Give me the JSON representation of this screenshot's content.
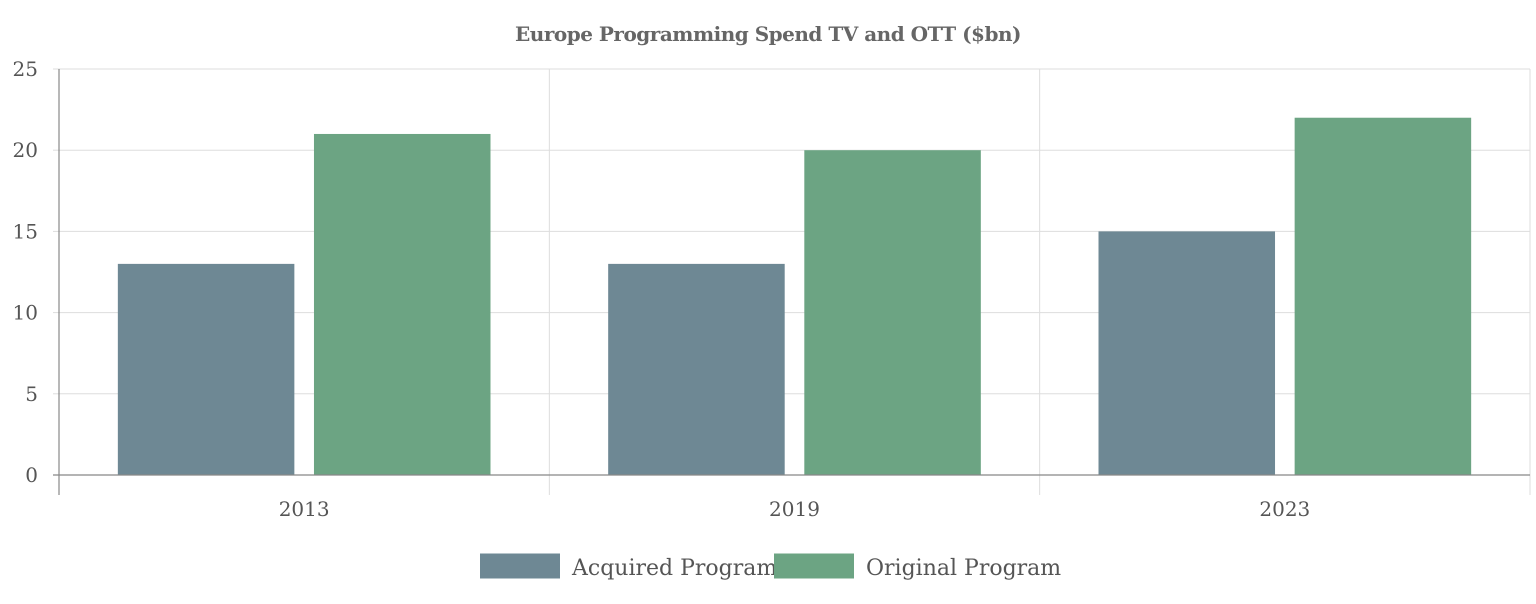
{
  "chart_data": {
    "type": "bar",
    "title": "Europe Programming Spend TV and OTT ($bn)",
    "categories": [
      "2013",
      "2019",
      "2023"
    ],
    "series": [
      {
        "name": "Acquired Program",
        "values": [
          13,
          13,
          15
        ],
        "color": "#6e8894"
      },
      {
        "name": "Original Program",
        "values": [
          21,
          20,
          22
        ],
        "color": "#6ca483"
      }
    ],
    "ylim": [
      0,
      25
    ],
    "yticks": [
      "0",
      "5",
      "10",
      "15",
      "20",
      "25"
    ],
    "xlabel": "",
    "ylabel": "",
    "grid": true,
    "legend": "bottom-center"
  }
}
